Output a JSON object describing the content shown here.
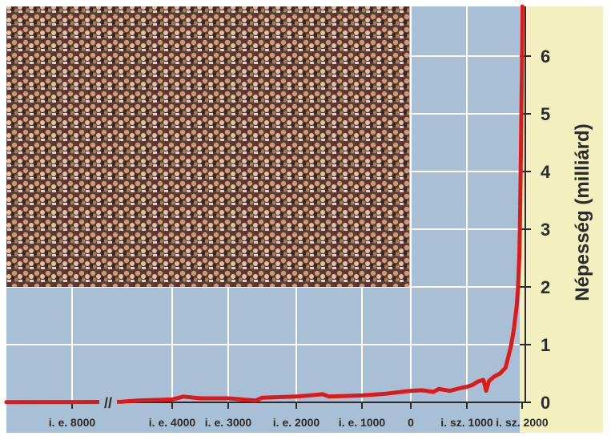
{
  "chart_data": {
    "type": "line",
    "ylabel": "Népesség (milliárd)",
    "ylim": [
      0,
      6.8
    ],
    "y_ticks": [
      "0",
      "1",
      "2",
      "3",
      "4",
      "5",
      "6"
    ],
    "x_ticks": [
      {
        "label": "i. e. 8000",
        "year": -8000
      },
      {
        "label": "i. e. 4000",
        "year": -4000
      },
      {
        "label": "i. e. 3000",
        "year": -3000
      },
      {
        "label": "i. e. 2000",
        "year": -2000
      },
      {
        "label": "i. e. 1000",
        "year": -1000
      },
      {
        "label": "0",
        "year": 0
      },
      {
        "label": "i. sz. 1000",
        "year": 1000
      },
      {
        "label": "i. sz. 2000",
        "year": 2000
      }
    ],
    "axis_break": "//",
    "grid": true,
    "colors": {
      "line": "#dd1a1a",
      "plot_background": "#a9bfd6",
      "grid": "#ffffff",
      "panel": "#f3efbf"
    },
    "inset_image": "crowd-photo",
    "series": [
      {
        "x": [
          -9000,
          -8000,
          -7000,
          -6000,
          -5000,
          -4000,
          -3800,
          -3500,
          -3000,
          -2600,
          -2500,
          -2000,
          -1600,
          -1500,
          -1000,
          -500,
          0,
          200,
          400,
          500,
          700,
          900,
          1000,
          1100,
          1200,
          1300,
          1350,
          1400,
          1500,
          1600,
          1700,
          1750,
          1800,
          1850,
          1900,
          1927,
          1950,
          1960,
          1974,
          1987,
          1999,
          2005
        ],
        "y": [
          0.004,
          0.005,
          0.007,
          0.01,
          0.03,
          0.05,
          0.1,
          0.07,
          0.07,
          0.03,
          0.08,
          0.1,
          0.14,
          0.1,
          0.12,
          0.15,
          0.2,
          0.21,
          0.18,
          0.23,
          0.2,
          0.25,
          0.27,
          0.3,
          0.36,
          0.39,
          0.2,
          0.37,
          0.45,
          0.5,
          0.6,
          0.79,
          0.98,
          1.26,
          1.65,
          2.0,
          2.52,
          3.0,
          4.0,
          5.0,
          6.0,
          7.0
        ]
      }
    ]
  }
}
